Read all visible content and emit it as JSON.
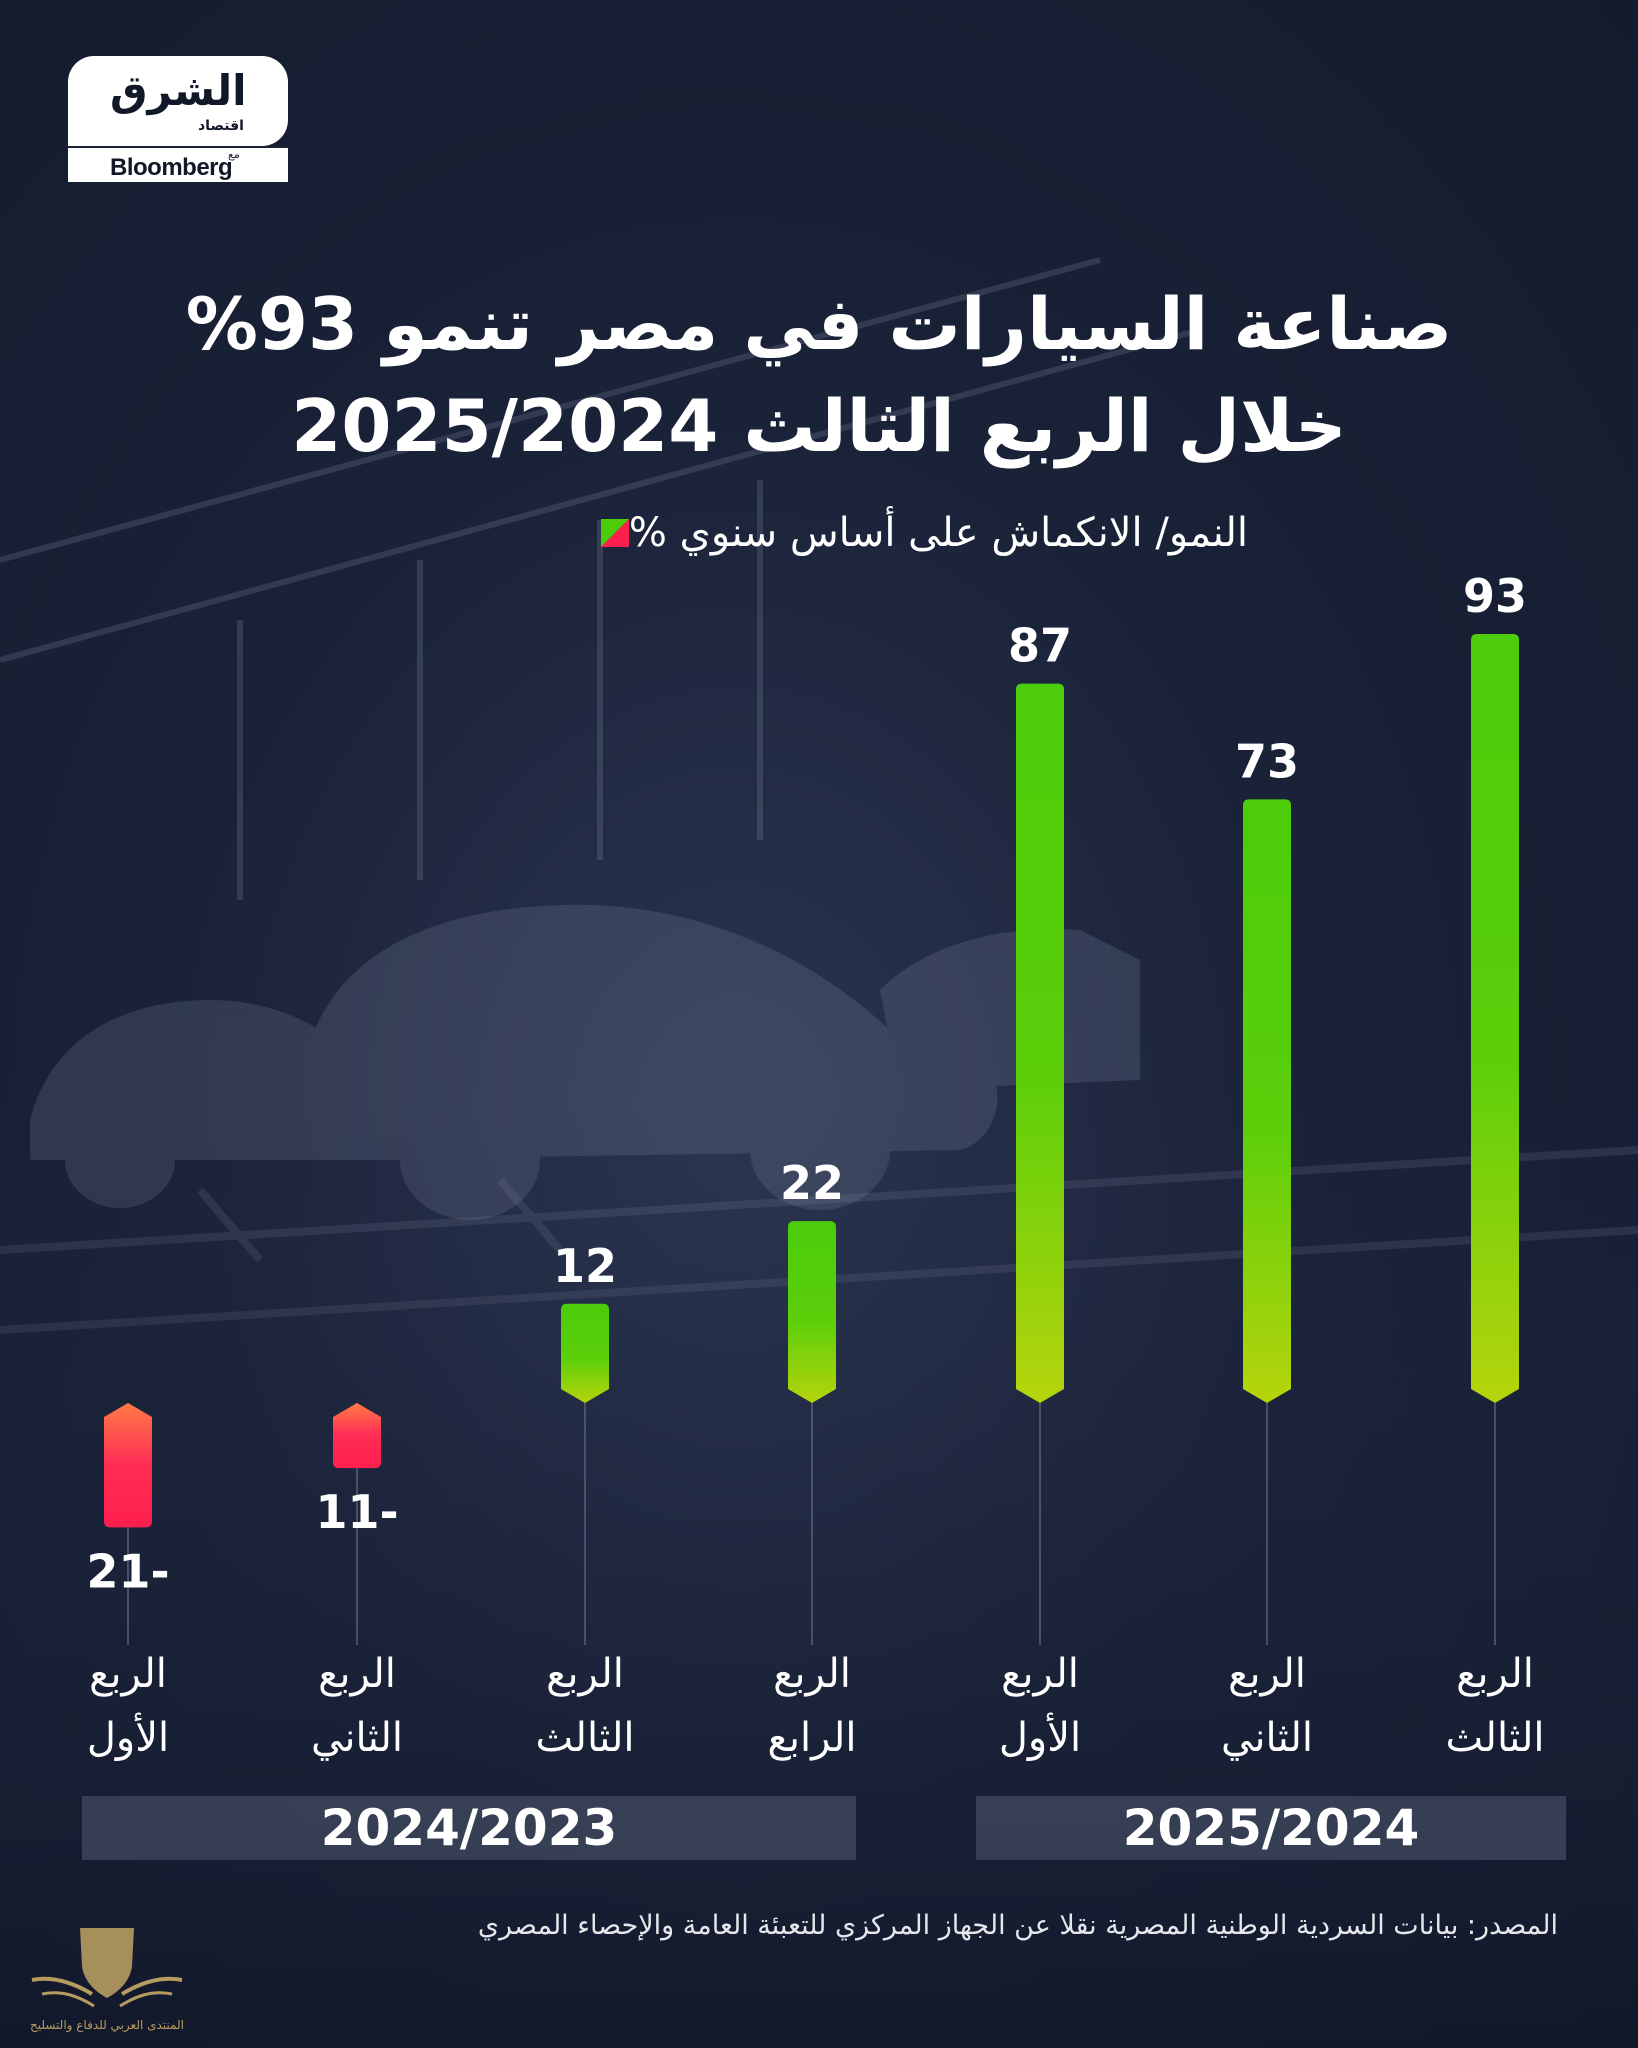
{
  "logo": {
    "main": "الشرق",
    "sub": "اقتصاد",
    "with": "مع",
    "partner": "Bloomberg"
  },
  "title": {
    "line1": "صناعة السيارات في مصر تنمو 93%",
    "line2": "خلال الربع الثالث 2025/2024"
  },
  "legend": {
    "label": "النمو/ الانكماش على أساس سنوي %"
  },
  "colors": {
    "positive_top": "#4ccc0a",
    "positive_bottom": "#b6d40c",
    "negative_top": "#ff7a45",
    "negative_bottom": "#ff1f4f",
    "background": "#1a2238"
  },
  "chart_data": {
    "type": "bar",
    "title": "صناعة السيارات في مصر تنمو 93% خلال الربع الثالث 2025/2024",
    "ylabel": "النمو/ الانكماش على أساس سنوي %",
    "xlabel": "",
    "ylim": [
      -21,
      93
    ],
    "grid": false,
    "legend_position": "top-right",
    "categories": [
      {
        "label_line1": "الربع",
        "label_line2": "الأول",
        "year": "2024/2023"
      },
      {
        "label_line1": "الربع",
        "label_line2": "الثاني",
        "year": "2024/2023"
      },
      {
        "label_line1": "الربع",
        "label_line2": "الثالث",
        "year": "2024/2023"
      },
      {
        "label_line1": "الربع",
        "label_line2": "الرابع",
        "year": "2024/2023"
      },
      {
        "label_line1": "الربع",
        "label_line2": "الأول",
        "year": "2025/2024"
      },
      {
        "label_line1": "الربع",
        "label_line2": "الثاني",
        "year": "2025/2024"
      },
      {
        "label_line1": "الربع",
        "label_line2": "الثالث",
        "year": "2025/2024"
      }
    ],
    "values": [
      -21,
      -11,
      12,
      22,
      87,
      73,
      93
    ],
    "value_labels": [
      "21-",
      "11-",
      "12",
      "22",
      "87",
      "73",
      "93"
    ],
    "groups": [
      "2024/2023",
      "2025/2024"
    ]
  },
  "source": "المصدر: بيانات السردية الوطنية المصرية نقلا عن الجهاز المركزي للتعبئة العامة والإحصاء المصري",
  "watermark": "المنتدى العربي للدفاع والتسليح"
}
